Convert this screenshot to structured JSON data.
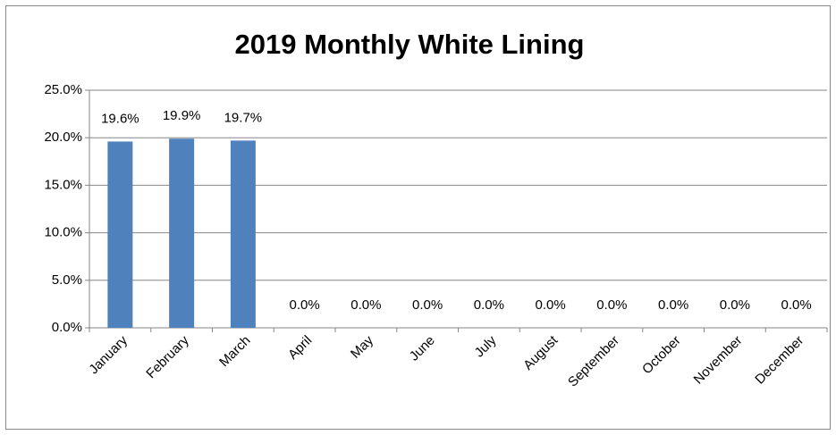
{
  "chart_data": {
    "type": "bar",
    "title": "2019 Monthly White Lining",
    "categories": [
      "January",
      "February",
      "March",
      "April",
      "May",
      "June",
      "July",
      "August",
      "September",
      "October",
      "November",
      "December"
    ],
    "values": [
      19.6,
      19.9,
      19.7,
      0,
      0,
      0,
      0,
      0,
      0,
      0,
      0,
      0
    ],
    "value_labels": [
      "19.6%",
      "19.9%",
      "19.7%",
      "0.0%",
      "0.0%",
      "0.0%",
      "0.0%",
      "0.0%",
      "0.0%",
      "0.0%",
      "0.0%",
      "0.0%"
    ],
    "color": "#4f81bd",
    "ylim": [
      0,
      25
    ],
    "yticks": [
      {
        "value": 0,
        "label": "0.0%"
      },
      {
        "value": 5,
        "label": "5.0%"
      },
      {
        "value": 10,
        "label": "10.0%"
      },
      {
        "value": 15,
        "label": "15.0%"
      },
      {
        "value": 20,
        "label": "20.0%"
      },
      {
        "value": 25,
        "label": "25.0%"
      }
    ],
    "grid": true
  }
}
